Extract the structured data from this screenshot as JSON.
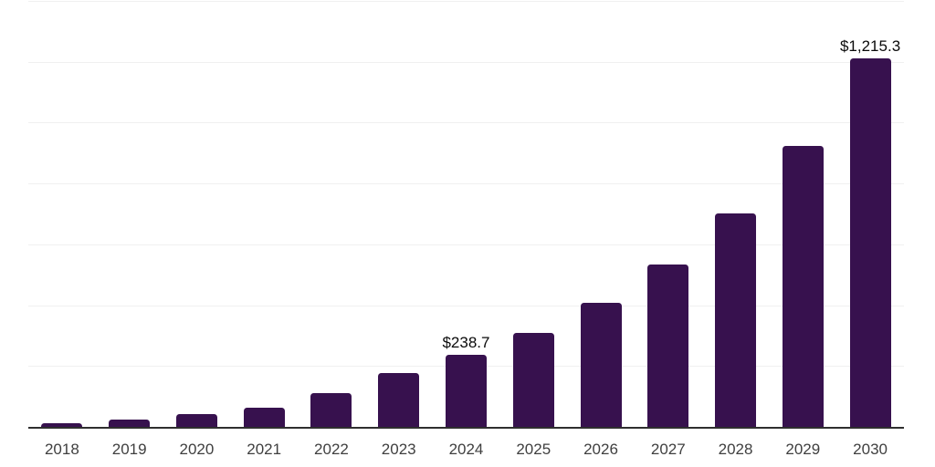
{
  "chart_data": {
    "type": "bar",
    "title": "",
    "xlabel": "",
    "ylabel": "",
    "categories": [
      "2018",
      "2019",
      "2020",
      "2021",
      "2022",
      "2023",
      "2024",
      "2025",
      "2026",
      "2027",
      "2028",
      "2029",
      "2030"
    ],
    "values": [
      15,
      27,
      44,
      67,
      113,
      181,
      238.7,
      312,
      410,
      537,
      704,
      925,
      1215.3
    ],
    "bar_labels": [
      "",
      "",
      "",
      "",
      "",
      "",
      "$238.7",
      "",
      "",
      "",
      "",
      "",
      "$1,215.3"
    ],
    "ylim": [
      0,
      1400
    ],
    "gridline_step": 200,
    "grid": true,
    "legend": "none",
    "y_tick_labels_visible": false,
    "colors": {
      "bar": "#37114E",
      "grid": "#f0f0f0",
      "axis": "#2f2f2f",
      "tick_label": "#3f3f3f",
      "value_label": "#0a0a0a",
      "background": "#ffffff"
    }
  }
}
